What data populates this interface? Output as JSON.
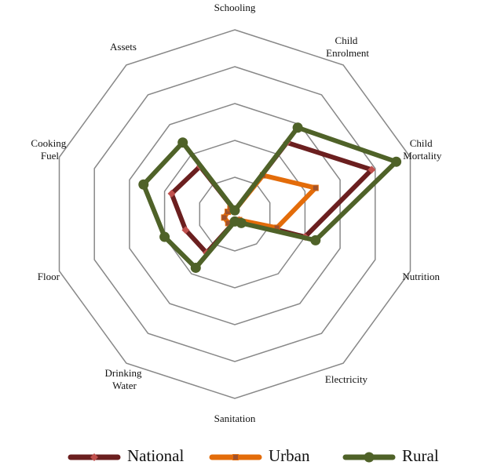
{
  "chart_data": {
    "type": "radar",
    "categories": [
      "Schooling",
      "Child Enrolment",
      "Child Mortality",
      "Nutrition",
      "Electricity",
      "Sanitation",
      "Drinking Water",
      "Floor",
      "Cooking Fuel",
      "Assets"
    ],
    "rlim": [
      0,
      5
    ],
    "rticks": [
      1,
      2,
      3,
      4,
      5
    ],
    "grid": true,
    "series": [
      {
        "name": "National",
        "color": "#6b1f1f",
        "marker": "diamond",
        "values": [
          0.1,
          2.4,
          3.9,
          2.0,
          0.2,
          0.2,
          1.3,
          1.4,
          1.8,
          1.6
        ]
      },
      {
        "name": "Urban",
        "color": "#e36c0a",
        "marker": "square",
        "values": [
          0.1,
          1.3,
          2.3,
          1.2,
          0.2,
          0.2,
          0.3,
          0.3,
          0.2,
          0.2
        ]
      },
      {
        "name": "Rural",
        "color": "#4f6228",
        "marker": "circle",
        "values": [
          0.1,
          2.9,
          4.6,
          2.3,
          0.3,
          0.2,
          1.8,
          2.0,
          2.6,
          2.4
        ]
      }
    ]
  }
}
